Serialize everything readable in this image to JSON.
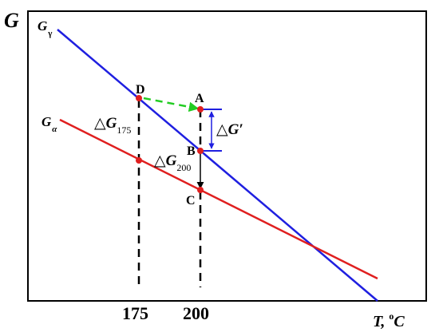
{
  "axis": {
    "y_label": "G",
    "x_label_main": "T, ",
    "x_label_sup": "o",
    "x_label_unit": "C",
    "ticks": [
      "175",
      "200"
    ]
  },
  "lines": {
    "gamma": {
      "label_main": "G",
      "label_sub": "γ",
      "color": "#1f1fe0"
    },
    "alpha": {
      "label_main": "G",
      "label_sub": "α",
      "color": "#e01f1f"
    }
  },
  "points": {
    "A": "A",
    "B": "B",
    "C": "C",
    "D": "D"
  },
  "annotations": {
    "dG175": {
      "delta": "△",
      "main": "G",
      "sub": "175"
    },
    "dG200": {
      "delta": "△",
      "main": "G",
      "sub": "200"
    },
    "dGprime": {
      "text": "△G′"
    }
  },
  "colors": {
    "point": "#e01f1f",
    "transfer_arrow": "#22cc22",
    "bracket": "#1f1fe0",
    "axis": "#000000"
  }
}
